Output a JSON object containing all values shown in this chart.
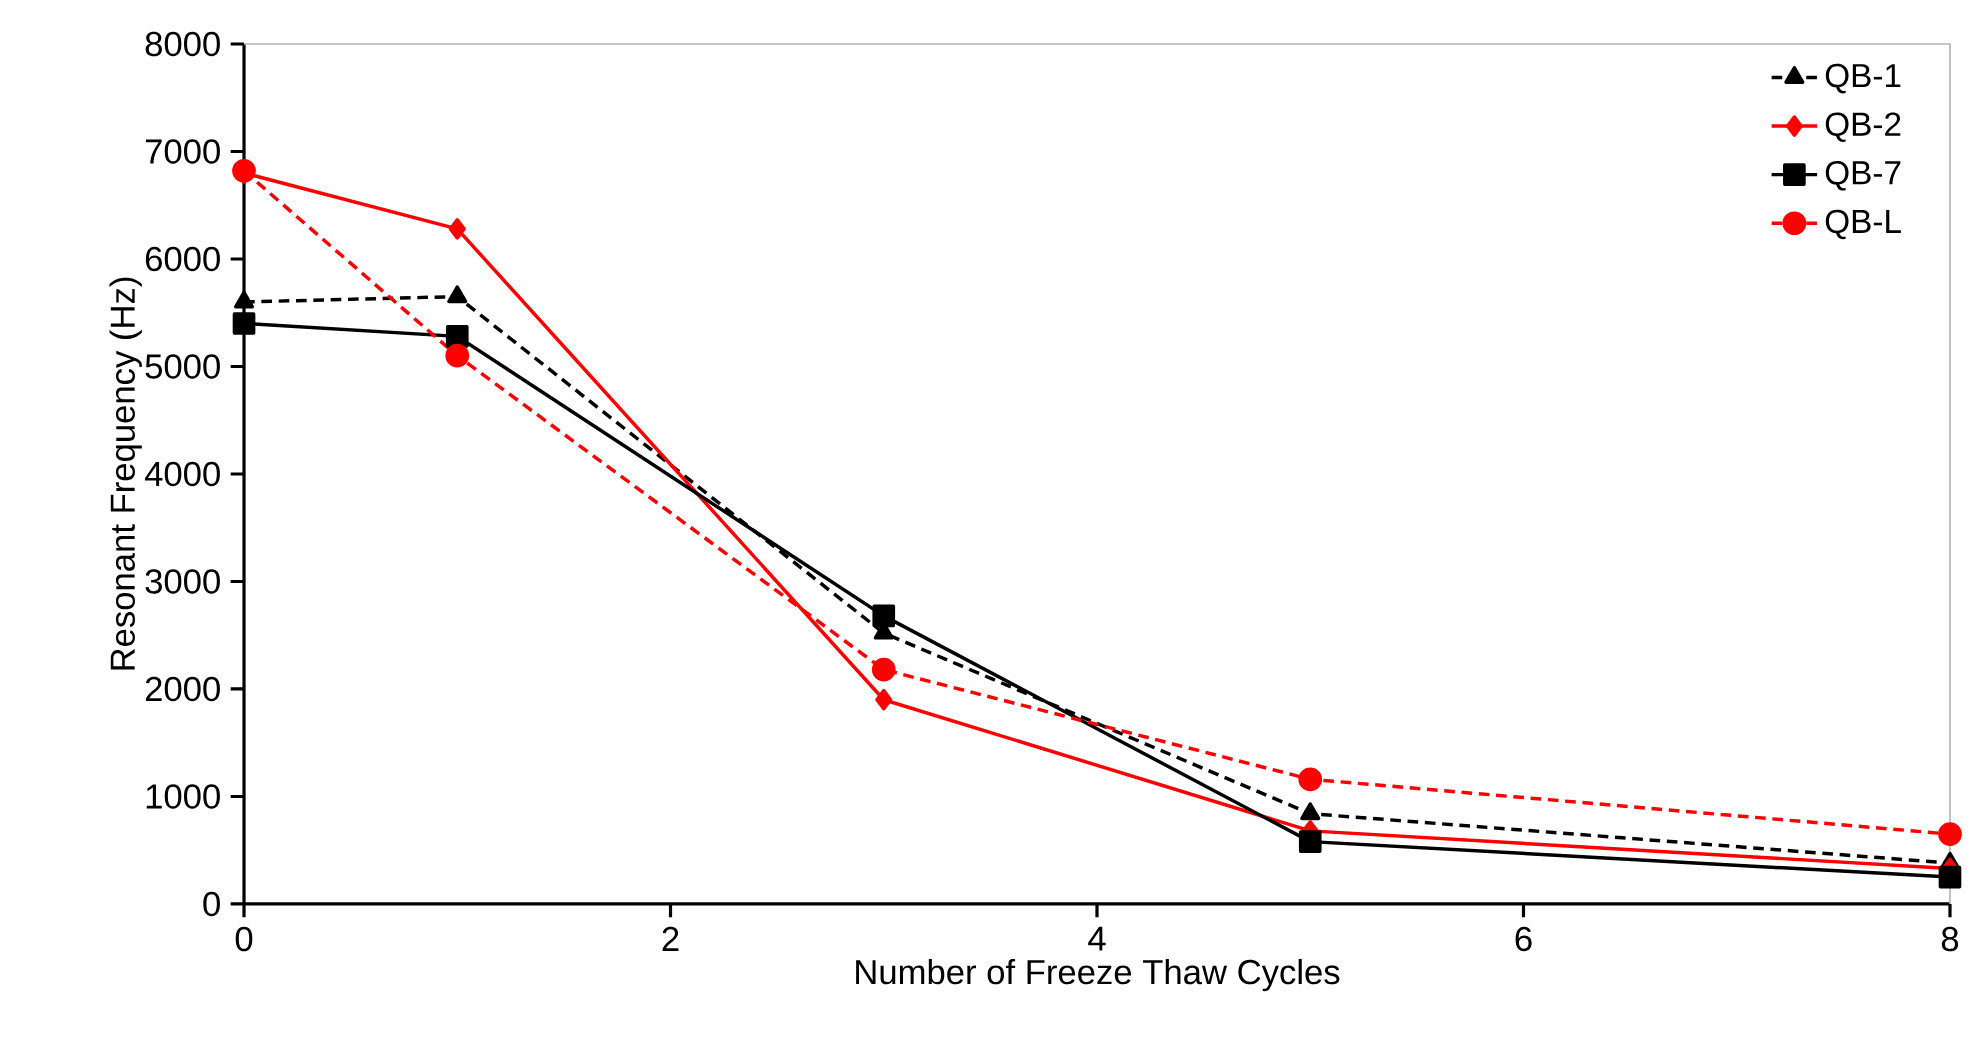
{
  "chart_data": {
    "type": "line",
    "xlabel": "Number of Freeze Thaw Cycles",
    "ylabel": "Resonant Frequency (Hz)",
    "x": [
      0,
      1,
      3,
      5,
      8
    ],
    "xlim": [
      0,
      8
    ],
    "xticks": [
      0,
      2,
      4,
      6,
      8
    ],
    "ylim": [
      0,
      8000
    ],
    "yticks": [
      0,
      1000,
      2000,
      3000,
      4000,
      5000,
      6000,
      7000,
      8000
    ],
    "grid": false,
    "legend": "top right",
    "series": [
      {
        "name": "QB-1",
        "color": "#000000",
        "marker": "triangle",
        "line_style": "dashed",
        "values": [
          5600,
          5650,
          2520,
          840,
          380
        ]
      },
      {
        "name": "QB-2",
        "color": "#ff0000",
        "marker": "diamond",
        "line_style": "solid",
        "values": [
          6800,
          6280,
          1900,
          680,
          330
        ]
      },
      {
        "name": "QB-7",
        "color": "#000000",
        "marker": "square",
        "line_style": "solid",
        "values": [
          5400,
          5280,
          2680,
          580,
          250
        ]
      },
      {
        "name": "QB-L",
        "color": "#ff0000",
        "marker": "circle",
        "line_style": "dashed",
        "values": [
          6820,
          5100,
          2180,
          1160,
          650
        ]
      }
    ]
  }
}
